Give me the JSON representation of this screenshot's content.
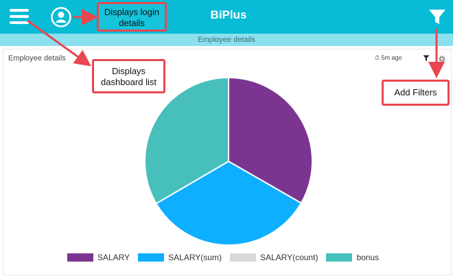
{
  "header": {
    "title": "BiPlus",
    "subtitle": "Employee details",
    "menu_icon": "hamburger-menu-icon",
    "user_icon": "user-account-icon",
    "filter_icon": "filter-icon",
    "bar_color": "#08bcd5",
    "subbar_color": "#8be0ee"
  },
  "card": {
    "title": "Employee details",
    "updated": "⏱ 5m ago",
    "filter_icon": "filter-icon",
    "settings_icon": "gear-icon"
  },
  "annotations": {
    "login": "Displays login details",
    "dashboard": "Displays dashboard list",
    "filters": "Add Filters",
    "border_color": "#e8474f"
  },
  "chart_data": {
    "type": "pie",
    "categories": [
      "SALARY",
      "SALARY(sum)",
      "SALARY(count)",
      "bonus"
    ],
    "values": [
      33.3,
      33.3,
      0,
      33.4
    ],
    "colors": [
      "#7b3590",
      "#0eafff",
      "#d9d9d9",
      "#47bfbb"
    ],
    "legend_position": "bottom"
  }
}
